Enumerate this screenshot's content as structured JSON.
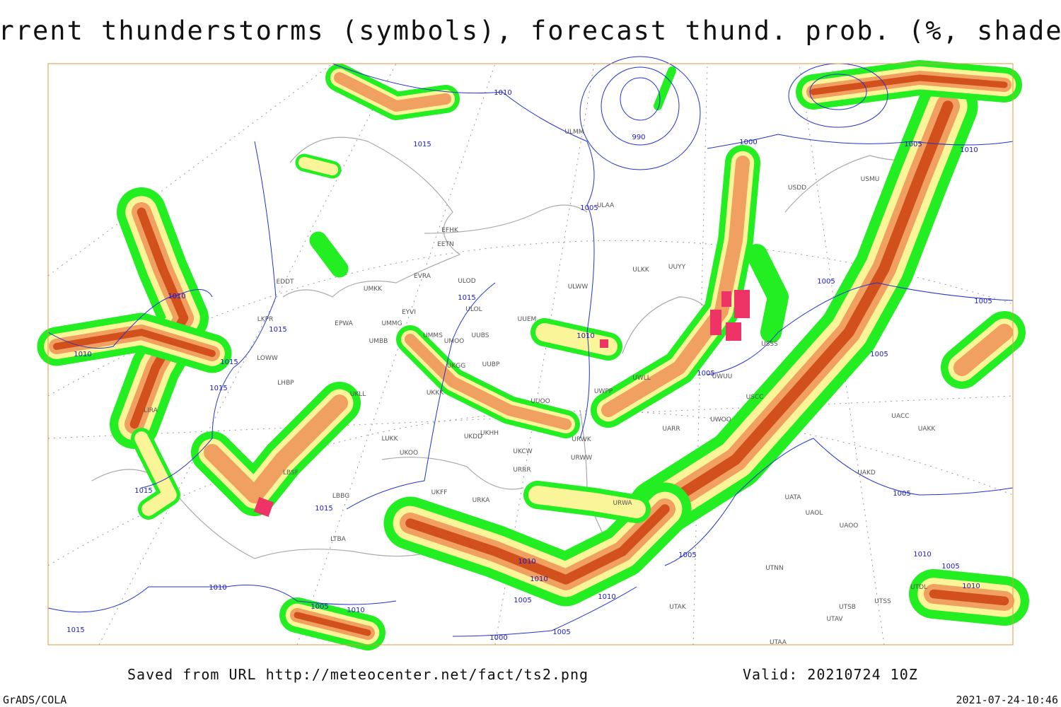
{
  "title": "Current thunderstorms (symbols), forecast thund. prob. (%, shaded)",
  "map": {
    "isobar_labels": [
      1010,
      1015,
      990,
      1000,
      1005,
      1005,
      1010,
      1010,
      1010,
      1015,
      1015,
      1015,
      1015,
      1015,
      1015,
      1010,
      1005,
      1005,
      1005,
      1005,
      1005,
      1005,
      1010,
      1005,
      1010,
      1010,
      1010,
      1005,
      1010,
      1005,
      1000,
      1010,
      1005,
      1010,
      1015
    ],
    "station_labels": [
      "EFHK",
      "EETN",
      "EVRA",
      "ULOD",
      "ULOL",
      "UMKK",
      "EYVI",
      "UMMG",
      "EPWA",
      "EDDT",
      "LKPR",
      "LOWW",
      "LHBP",
      "LIRA",
      "UMMS",
      "UMOO",
      "UUBS",
      "UUBP",
      "UMBB",
      "UKLL",
      "UKKK",
      "UKGG",
      "UUEM",
      "UUOO",
      "UKHH",
      "UKDD",
      "UKCW",
      "URRR",
      "UKFF",
      "URKA",
      "LUKK",
      "UKOO",
      "LBSF",
      "LBBG",
      "LTBA",
      "URWA",
      "URWW",
      "URWK",
      "UWPP",
      "UWLL",
      "UARR",
      "UWOO",
      "UWUU",
      "ULWW",
      "ULKK",
      "UUYY",
      "ULAA",
      "ULMM",
      "USSS",
      "USCC",
      "UACC",
      "UAKK",
      "UAKD",
      "UATA",
      "UAOL",
      "UAOO",
      "UTNN",
      "UTAK",
      "UTSB",
      "UTSS",
      "UTAV",
      "UTDL",
      "USMU",
      "USDD",
      "UTAA"
    ]
  },
  "footer": {
    "source": "Saved from URL http://meteocenter.net/fact/ts2.png",
    "valid": "Valid: 20210724 10Z",
    "software": "GrADS/COLA",
    "timestamp": "2021-07-24-10:46"
  }
}
